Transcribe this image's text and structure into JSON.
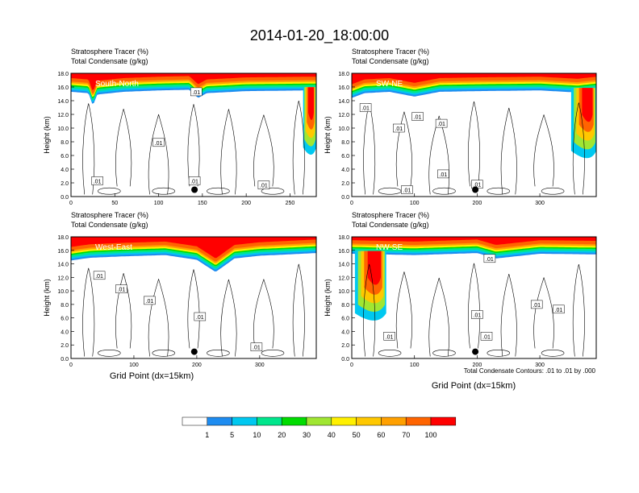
{
  "figure_title": "2014-01-20_18:00:00",
  "panel_field1": "Stratosphere Tracer   (%)",
  "panel_field2": "Total Condensate   (g/kg)",
  "ylabel": "Height (km)",
  "xlabel": "Grid Point (dx=15km)",
  "contour_note": "Total Condensate Contours: .01 to .01 by .000",
  "contour_label": ".01",
  "colorbar": {
    "levels": [
      "1",
      "5",
      "10",
      "20",
      "30",
      "40",
      "50",
      "60",
      "70",
      "100"
    ],
    "colors": [
      "#ffffff",
      "#1e8cf0",
      "#00c8f0",
      "#00e68c",
      "#00dc00",
      "#a0e632",
      "#fff000",
      "#ffc800",
      "#ffa000",
      "#ff6400",
      "#ff0000"
    ]
  },
  "chart_data": [
    {
      "type": "heatmap",
      "name": "South-North",
      "xlim": [
        0,
        280
      ],
      "ylim": [
        0,
        18
      ],
      "x_ticks": [
        "0",
        "50",
        "100",
        "150",
        "200",
        "250"
      ],
      "y_ticks": [
        "0.0",
        "2.0",
        "4.0",
        "6.0",
        "8.0",
        "10.0",
        "12.0",
        "14.0",
        "16.0",
        "18.0"
      ],
      "tropopause_km": [
        [
          0,
          15.3
        ],
        [
          20,
          15.1
        ],
        [
          25,
          13.3
        ],
        [
          30,
          14.9
        ],
        [
          60,
          15.3
        ],
        [
          100,
          15.5
        ],
        [
          135,
          15.6
        ],
        [
          145,
          14.4
        ],
        [
          155,
          15.1
        ],
        [
          200,
          15.4
        ],
        [
          270,
          15.5
        ],
        [
          280,
          15.5
        ]
      ],
      "intrusions": [
        {
          "x_range": [
            265,
            280
          ],
          "bottom_km": 6.0,
          "center_x": 275
        }
      ],
      "marker": {
        "x": 141,
        "y": 1.0
      },
      "contour_labels": [
        {
          "x": 143,
          "y": 15.3
        },
        {
          "x": 141,
          "y": 2.3
        },
        {
          "x": 100,
          "y": 7.9
        },
        {
          "x": 30,
          "y": 2.3
        },
        {
          "x": 220,
          "y": 1.7
        }
      ]
    },
    {
      "type": "heatmap",
      "name": "SW-NE",
      "xlim": [
        0,
        390
      ],
      "ylim": [
        0,
        18
      ],
      "x_ticks": [
        "0",
        "100",
        "200",
        "300"
      ],
      "y_ticks": [
        "0.0",
        "2.0",
        "4.0",
        "6.0",
        "8.0",
        "10.0",
        "12.0",
        "14.0",
        "16.0",
        "18.0"
      ],
      "tropopause_km": [
        [
          0,
          14.4
        ],
        [
          20,
          15.1
        ],
        [
          60,
          15.3
        ],
        [
          100,
          14.6
        ],
        [
          140,
          15.3
        ],
        [
          200,
          15.4
        ],
        [
          300,
          15.5
        ],
        [
          360,
          15.2
        ],
        [
          390,
          15.5
        ]
      ],
      "intrusions": [
        {
          "x_range": [
            350,
            390
          ],
          "bottom_km": 5.5,
          "center_x": 380
        }
      ],
      "marker": {
        "x": 197,
        "y": 1.0
      },
      "contour_labels": [
        {
          "x": 22,
          "y": 13.0
        },
        {
          "x": 75,
          "y": 10.0
        },
        {
          "x": 105,
          "y": 11.7
        },
        {
          "x": 143,
          "y": 10.7
        },
        {
          "x": 146,
          "y": 3.3
        },
        {
          "x": 200,
          "y": 1.8
        },
        {
          "x": 88,
          "y": 1.0
        }
      ]
    },
    {
      "type": "heatmap",
      "name": "West-East",
      "xlim": [
        0,
        390
      ],
      "ylim": [
        0,
        18
      ],
      "x_ticks": [
        "0",
        "100",
        "200",
        "300"
      ],
      "y_ticks": [
        "0.0",
        "2.0",
        "4.0",
        "6.0",
        "8.0",
        "10.0",
        "12.0",
        "14.0",
        "16.0",
        "18.0"
      ],
      "tropopause_km": [
        [
          0,
          14.5
        ],
        [
          30,
          14.9
        ],
        [
          80,
          15.1
        ],
        [
          150,
          15.3
        ],
        [
          200,
          14.6
        ],
        [
          230,
          12.8
        ],
        [
          260,
          14.8
        ],
        [
          300,
          15.2
        ],
        [
          390,
          15.6
        ]
      ],
      "intrusions": [],
      "marker": {
        "x": 196,
        "y": 1.0
      },
      "contour_labels": [
        {
          "x": 45,
          "y": 12.3
        },
        {
          "x": 80,
          "y": 10.3
        },
        {
          "x": 125,
          "y": 8.6
        },
        {
          "x": 205,
          "y": 6.2
        },
        {
          "x": 295,
          "y": 1.7
        }
      ]
    },
    {
      "type": "heatmap",
      "name": "NW-SE",
      "xlim": [
        0,
        390
      ],
      "ylim": [
        0,
        18
      ],
      "x_ticks": [
        "0",
        "100",
        "200",
        "300"
      ],
      "y_ticks": [
        "0.0",
        "2.0",
        "4.0",
        "6.0",
        "8.0",
        "10.0",
        "12.0",
        "14.0",
        "16.0",
        "18.0"
      ],
      "tropopause_km": [
        [
          0,
          15.5
        ],
        [
          50,
          15.4
        ],
        [
          100,
          15.3
        ],
        [
          200,
          15.6
        ],
        [
          230,
          14.8
        ],
        [
          300,
          15.5
        ],
        [
          390,
          15.4
        ]
      ],
      "intrusions": [
        {
          "x_range": [
            5,
            55
          ],
          "bottom_km": 5.5,
          "center_x": 40
        }
      ],
      "marker": {
        "x": 197,
        "y": 1.0
      },
      "contour_labels": [
        {
          "x": 220,
          "y": 14.8
        },
        {
          "x": 200,
          "y": 6.5
        },
        {
          "x": 215,
          "y": 3.3
        },
        {
          "x": 60,
          "y": 3.3
        },
        {
          "x": 295,
          "y": 8.0
        },
        {
          "x": 330,
          "y": 7.3
        }
      ]
    }
  ]
}
